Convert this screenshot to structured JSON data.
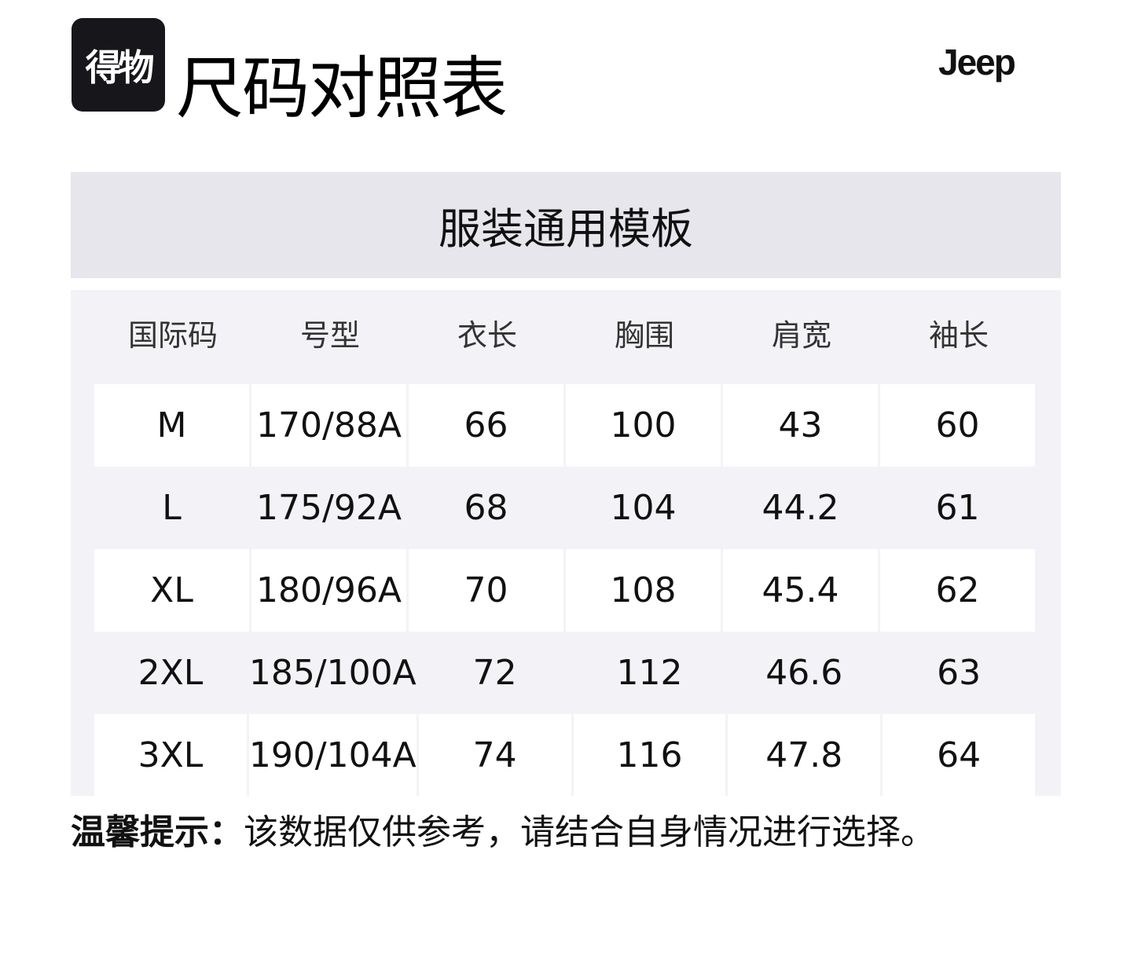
{
  "header": {
    "logo_text": "得物",
    "title": "尺码对照表",
    "brand": "Jeep"
  },
  "band": {
    "title": "服装通用模板"
  },
  "table": {
    "columns": [
      "国际码",
      "号型",
      "衣长",
      "胸围",
      "肩宽",
      "袖长"
    ],
    "rows": [
      [
        "M",
        "170/88A",
        "66",
        "100",
        "43",
        "60"
      ],
      [
        "L",
        "175/92A",
        "68",
        "104",
        "44.2",
        "61"
      ],
      [
        "XL",
        "180/96A",
        "70",
        "108",
        "45.4",
        "62"
      ],
      [
        "2XL",
        "185/100A",
        "72",
        "112",
        "46.6",
        "63"
      ],
      [
        "3XL",
        "190/104A",
        "74",
        "116",
        "47.8",
        "64"
      ]
    ]
  },
  "tip": {
    "label": "温馨提示：",
    "text": "该数据仅供参考，请结合自身情况进行选择。"
  }
}
